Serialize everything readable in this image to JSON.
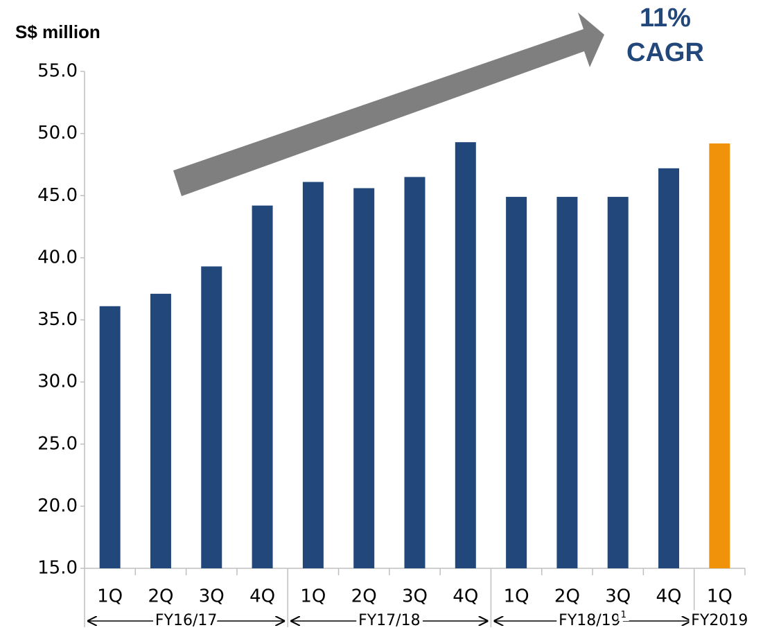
{
  "chart_data": {
    "type": "bar",
    "title": "S$ million",
    "annotation": [
      "11%",
      "CAGR"
    ],
    "categories": [
      "1Q",
      "2Q",
      "3Q",
      "4Q",
      "1Q",
      "2Q",
      "3Q",
      "4Q",
      "1Q",
      "2Q",
      "3Q",
      "4Q",
      "1Q"
    ],
    "category_groups": [
      "FY16/17",
      "FY16/17",
      "FY16/17",
      "FY16/17",
      "FY17/18",
      "FY17/18",
      "FY17/18",
      "FY17/18",
      "FY18/19",
      "FY18/19",
      "FY18/19",
      "FY18/19",
      "FY2019"
    ],
    "group_footnote_marks": [
      null,
      null,
      null,
      null,
      null,
      null,
      null,
      null,
      "1",
      null,
      null,
      null,
      null
    ],
    "values": [
      36.1,
      37.1,
      39.3,
      44.2,
      46.1,
      45.6,
      46.5,
      49.3,
      44.9,
      44.9,
      44.9,
      47.2,
      49.2
    ],
    "colors": [
      "#21477b",
      "#21477b",
      "#21477b",
      "#21477b",
      "#21477b",
      "#21477b",
      "#21477b",
      "#21477b",
      "#21477b",
      "#21477b",
      "#21477b",
      "#21477b",
      "#f0920a"
    ],
    "ylim": [
      15,
      55
    ],
    "yticks": [
      {
        "value": 15,
        "label": "15.0"
      },
      {
        "value": 20,
        "label": "20.0"
      },
      {
        "value": 25,
        "label": "25.0"
      },
      {
        "value": 30,
        "label": "30.0"
      },
      {
        "value": 35,
        "label": "35.0"
      },
      {
        "value": 40,
        "label": "40.0"
      },
      {
        "value": 45,
        "label": "45.0"
      },
      {
        "value": 50,
        "label": "50.0"
      },
      {
        "value": 55,
        "label": "55.0"
      }
    ],
    "grid": false
  }
}
